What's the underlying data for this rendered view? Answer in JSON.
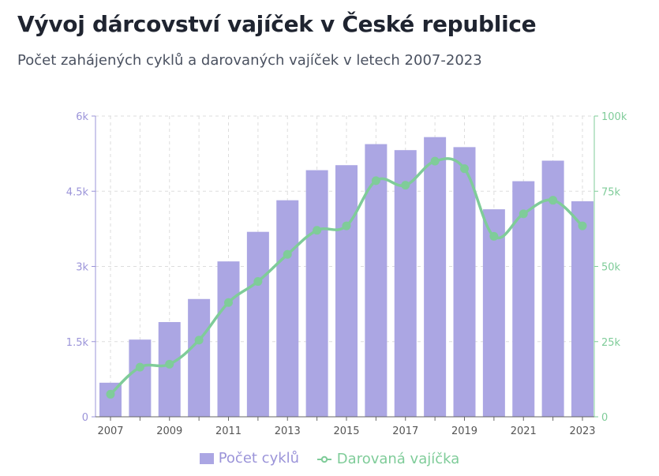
{
  "title": "Vývoj dárcovství vajíček v České republice",
  "subtitle": "Počet zahájených cyklů a darovaných vajíček v letech 2007-2023",
  "colors": {
    "bars": "#aba6e3",
    "line": "#7fcc99",
    "left_axis": "#9b94d9",
    "right_axis": "#7fcc99",
    "grid": "#dddddd",
    "axis_text": "#555555"
  },
  "chart_data": {
    "type": "bar",
    "x": [
      2007,
      2008,
      2009,
      2010,
      2011,
      2012,
      2013,
      2014,
      2015,
      2016,
      2017,
      2018,
      2019,
      2020,
      2021,
      2022,
      2023
    ],
    "x_tick_labels": [
      "2007",
      "2009",
      "2011",
      "2013",
      "2015",
      "2017",
      "2019",
      "2021",
      "2023"
    ],
    "series": [
      {
        "name": "Počet cyklů",
        "type": "bar",
        "axis": "left",
        "values": [
          680,
          1540,
          1890,
          2350,
          3100,
          3690,
          4320,
          4920,
          5020,
          5440,
          5320,
          5580,
          5380,
          4140,
          4700,
          5110,
          4300
        ]
      },
      {
        "name": "Darovaná vajíčka",
        "type": "line",
        "axis": "right",
        "values": [
          7500,
          16500,
          17500,
          25500,
          38000,
          45000,
          54000,
          62000,
          63500,
          78500,
          77000,
          85000,
          82500,
          60000,
          67500,
          72000,
          63500
        ]
      }
    ],
    "y_left": {
      "ylim": [
        0,
        6000
      ],
      "ticks": [
        0,
        1500,
        3000,
        4500,
        6000
      ],
      "tick_labels": [
        "0",
        "1.5k",
        "3k",
        "4.5k",
        "6k"
      ]
    },
    "y_right": {
      "ylim": [
        0,
        100000
      ],
      "ticks": [
        0,
        25000,
        50000,
        75000,
        100000
      ],
      "tick_labels": [
        "0",
        "25k",
        "50k",
        "75k",
        "100k"
      ]
    },
    "grid": true,
    "legend": "bottom-center"
  }
}
